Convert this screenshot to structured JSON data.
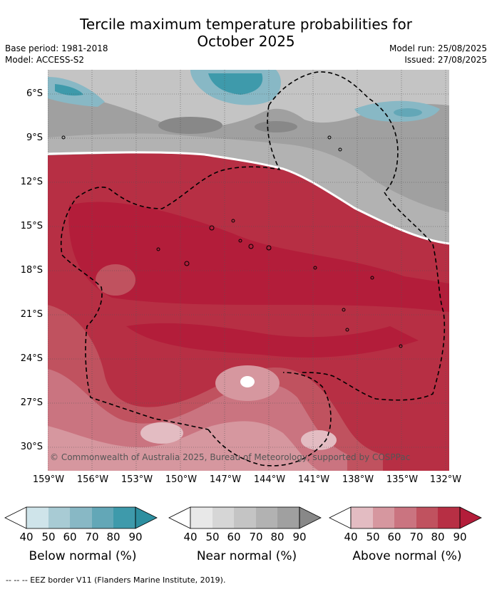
{
  "header": {
    "title_line1": "Tercile maximum temperature probabilities for",
    "title_line2": "October 2025",
    "base_period": "Base period: 1981-2018",
    "model": "Model: ACCESS-S2",
    "model_run": "Model run: 25/08/2025",
    "issued": "Issued: 27/08/2025"
  },
  "map": {
    "lat_labels": [
      "6°S",
      "9°S",
      "12°S",
      "15°S",
      "18°S",
      "21°S",
      "24°S",
      "27°S",
      "30°S"
    ],
    "lon_labels": [
      "159°W",
      "156°W",
      "153°W",
      "150°W",
      "147°W",
      "144°W",
      "141°W",
      "138°W",
      "135°W",
      "132°W"
    ],
    "copyright": "© Commonwealth of Australia 2025, Bureau of Meteorology, supported by COSPPac"
  },
  "legend": {
    "ticks": [
      "40",
      "50",
      "60",
      "70",
      "80",
      "90"
    ],
    "below": {
      "caption": "Below normal (%)",
      "colors": [
        "#cfe4ea",
        "#a8cbd4",
        "#88b8c5",
        "#63a7b7",
        "#3e9aab",
        "#2d8fa0"
      ]
    },
    "near": {
      "caption": "Near normal (%)",
      "colors": [
        "#e8e8e8",
        "#d6d6d6",
        "#c4c4c4",
        "#b2b2b2",
        "#a0a0a0",
        "#888888"
      ]
    },
    "above": {
      "caption": "Above normal (%)",
      "colors": [
        "#e3bcc2",
        "#d6979f",
        "#ca7480",
        "#c0525f",
        "#b72f44",
        "#b31d3a"
      ]
    }
  },
  "footnote": "--  --  -- EEZ border V11 (Flanders Marine Institute, 2019)."
}
